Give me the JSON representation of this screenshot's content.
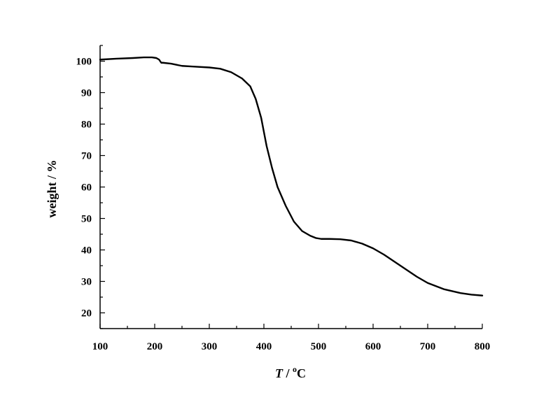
{
  "chart_data": {
    "type": "line",
    "title": "",
    "xlabel": {
      "italic": "T",
      "rest": " / ",
      "superscript": "o",
      "unit": "C"
    },
    "ylabel": "weight / %",
    "xlim": [
      100,
      800
    ],
    "ylim": [
      15,
      105
    ],
    "xticks": [
      100,
      200,
      300,
      400,
      500,
      600,
      700,
      800
    ],
    "yticks": [
      20,
      30,
      40,
      50,
      60,
      70,
      80,
      90,
      100
    ],
    "grid": false,
    "legend": "none",
    "line_color": "#000000",
    "series": [
      {
        "x": [
          100,
          130,
          160,
          180,
          195,
          203,
          208,
          212,
          215,
          230,
          250,
          270,
          300,
          320,
          340,
          360,
          375,
          385,
          395,
          405,
          415,
          425,
          440,
          455,
          470,
          485,
          495,
          505,
          520,
          540,
          560,
          580,
          600,
          620,
          650,
          680,
          700,
          730,
          760,
          780,
          800
        ],
        "y": [
          100.5,
          100.8,
          101.0,
          101.2,
          101.2,
          101.0,
          100.5,
          99.5,
          99.5,
          99.2,
          98.5,
          98.3,
          98.0,
          97.6,
          96.5,
          94.5,
          92.0,
          88.0,
          82.0,
          73.0,
          66.0,
          60.0,
          54.0,
          49.0,
          46.0,
          44.5,
          43.8,
          43.5,
          43.5,
          43.4,
          43.0,
          42.0,
          40.5,
          38.5,
          35.0,
          31.5,
          29.5,
          27.5,
          26.3,
          25.8,
          25.5
        ]
      }
    ]
  }
}
